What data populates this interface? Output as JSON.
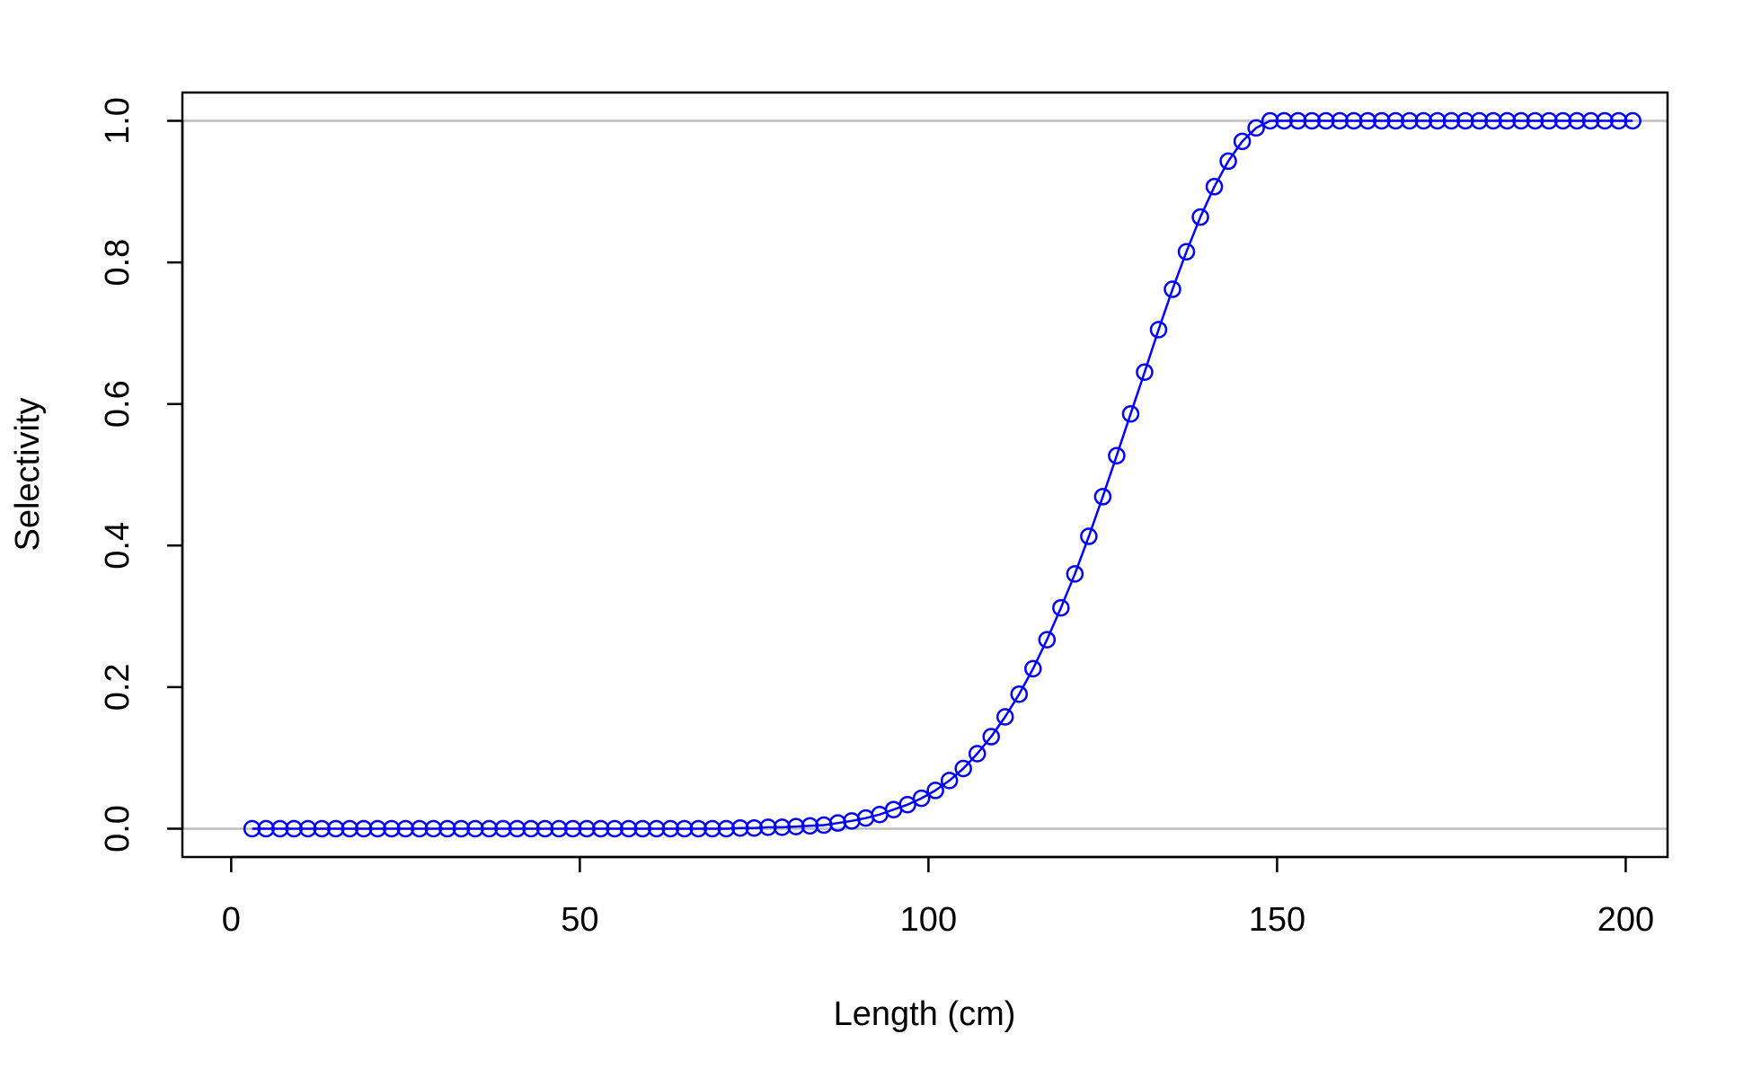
{
  "chart_data": {
    "type": "line",
    "title": "",
    "xlabel": "Length (cm)",
    "ylabel": "Selectivity",
    "xlim": [
      -7,
      206
    ],
    "ylim": [
      -0.04,
      1.04
    ],
    "x_ticks": [
      0,
      50,
      100,
      150,
      200
    ],
    "x_tick_labels": [
      "0",
      "50",
      "100",
      "150",
      "200"
    ],
    "y_ticks": [
      0.0,
      0.2,
      0.4,
      0.6,
      0.8,
      1.0
    ],
    "y_tick_labels": [
      "0.0",
      "0.2",
      "0.4",
      "0.6",
      "0.8",
      "1.0"
    ],
    "reference_lines_y": [
      0,
      1
    ],
    "grid": false,
    "legend": "none",
    "colors": {
      "series": "#0000ff",
      "reference": "#bebebe",
      "axis": "#000000"
    },
    "series": [
      {
        "marker": "open-circle",
        "line": true,
        "x": [
          3,
          5,
          7,
          9,
          11,
          13,
          15,
          17,
          19,
          21,
          23,
          25,
          27,
          29,
          31,
          33,
          35,
          37,
          39,
          41,
          43,
          45,
          47,
          49,
          51,
          53,
          55,
          57,
          59,
          61,
          63,
          65,
          67,
          69,
          71,
          73,
          75,
          77,
          79,
          81,
          83,
          85,
          87,
          89,
          91,
          93,
          95,
          97,
          99,
          101,
          103,
          105,
          107,
          109,
          111,
          113,
          115,
          117,
          119,
          121,
          123,
          125,
          127,
          129,
          131,
          133,
          135,
          137,
          139,
          141,
          143,
          145,
          147,
          149,
          151,
          153,
          155,
          157,
          159,
          161,
          163,
          165,
          167,
          169,
          171,
          173,
          175,
          177,
          179,
          181,
          183,
          185,
          187,
          189,
          191,
          193,
          195,
          197,
          199,
          201
        ],
        "y": [
          0,
          0,
          0,
          0,
          0,
          0,
          0,
          0,
          0,
          0,
          0,
          0,
          0,
          0,
          0,
          0,
          0,
          0,
          0,
          0,
          0,
          0,
          0,
          0,
          0,
          0,
          0,
          0,
          0,
          0,
          0,
          0,
          0,
          0,
          0,
          0.001,
          0.001,
          0.002,
          0.002,
          0.003,
          0.004,
          0.005,
          0.008,
          0.011,
          0.015,
          0.02,
          0.027,
          0.034,
          0.043,
          0.054,
          0.068,
          0.085,
          0.106,
          0.13,
          0.158,
          0.19,
          0.226,
          0.267,
          0.312,
          0.36,
          0.413,
          0.469,
          0.527,
          0.586,
          0.645,
          0.705,
          0.762,
          0.815,
          0.864,
          0.907,
          0.943,
          0.971,
          0.99,
          1.0,
          1.0,
          1.0,
          1.0,
          1.0,
          1.0,
          1.0,
          1.0,
          1.0,
          1.0,
          1.0,
          1.0,
          1.0,
          1.0,
          1.0,
          1.0,
          1.0,
          1.0,
          1.0,
          1.0,
          1.0,
          1.0,
          1.0,
          1.0,
          1.0,
          1.0,
          1.0
        ]
      }
    ]
  }
}
